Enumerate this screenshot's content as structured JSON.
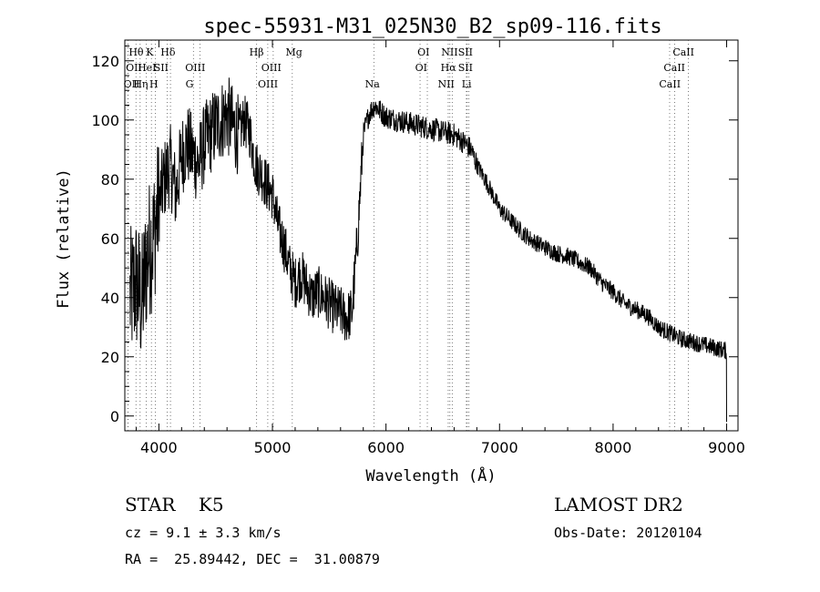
{
  "chart_data": {
    "type": "line",
    "title": "spec-55931-M31_025N30_B2_sp09-116.fits",
    "xlabel": "Wavelength (Å)",
    "ylabel": "Flux (relative)",
    "xlim": [
      3700,
      9100
    ],
    "ylim": [
      -5,
      127
    ],
    "xticks": [
      4000,
      5000,
      6000,
      7000,
      8000,
      9000
    ],
    "yticks": [
      0,
      20,
      40,
      60,
      80,
      100,
      120
    ],
    "grid": false,
    "series": [
      {
        "x": [
          3750,
          3800,
          3850,
          3900,
          3950,
          4000,
          4050,
          4100,
          4150,
          4200,
          4250,
          4300,
          4350,
          4400,
          4450,
          4500,
          4550,
          4600,
          4650,
          4700,
          4750,
          4800,
          4850,
          4900,
          4950,
          5000,
          5050,
          5100,
          5150,
          5200,
          5250,
          5300,
          5350,
          5400,
          5450,
          5500,
          5550,
          5600,
          5650,
          5700,
          5750,
          5800,
          5850,
          5900,
          5950,
          6000,
          6100,
          6200,
          6300,
          6400,
          6500,
          6600,
          6700,
          6750,
          6800,
          6900,
          7000,
          7100,
          7200,
          7300,
          7400,
          7500,
          7600,
          7700,
          7800,
          7900,
          8000,
          8100,
          8200,
          8300,
          8400,
          8500,
          8600,
          8700,
          8800,
          8900,
          9000
        ],
        "values": [
          40,
          45,
          38,
          55,
          60,
          72,
          80,
          85,
          75,
          88,
          92,
          88,
          85,
          92,
          95,
          98,
          100,
          102,
          98,
          95,
          100,
          96,
          85,
          82,
          78,
          75,
          64,
          58,
          50,
          45,
          48,
          44,
          40,
          42,
          40,
          38,
          36,
          35,
          33,
          35,
          60,
          95,
          102,
          105,
          103,
          101,
          100,
          99,
          98,
          97,
          96,
          95,
          92,
          90,
          85,
          78,
          70,
          66,
          62,
          59,
          57,
          55,
          54,
          52,
          50,
          45,
          42,
          38,
          36,
          34,
          30,
          28,
          26,
          25,
          24,
          23,
          22
        ]
      }
    ],
    "spectral_lines": [
      {
        "label": "Hθ",
        "x": 3798,
        "row": 1,
        "lab_x": 3800
      },
      {
        "label": "K",
        "x": 3934,
        "row": 1,
        "lab_x": 3920
      },
      {
        "label": "Hδ",
        "x": 4102,
        "row": 1,
        "lab_x": 4080
      },
      {
        "label": "OII",
        "x": 3727,
        "row": 2,
        "lab_x": 3780
      },
      {
        "label": "HeI",
        "x": 3889,
        "row": 2,
        "lab_x": 3895
      },
      {
        "label": "SII",
        "x": 4072,
        "row": 2,
        "lab_x": 4020
      },
      {
        "label": "OIII",
        "x": 4363,
        "row": 2,
        "lab_x": 4320
      },
      {
        "label": "OII",
        "x": 3727,
        "row": 3,
        "lab_x": 3760
      },
      {
        "label": "Hη",
        "x": 3835,
        "row": 3,
        "lab_x": 3840
      },
      {
        "label": "H",
        "x": 3968,
        "row": 3,
        "lab_x": 3955
      },
      {
        "label": "G",
        "x": 4304,
        "row": 3,
        "lab_x": 4270
      },
      {
        "label": "Hβ",
        "x": 4861,
        "row": 1,
        "lab_x": 4860
      },
      {
        "label": "OIII",
        "x": 4959,
        "row": 2,
        "lab_x": 4990
      },
      {
        "label": "OIII",
        "x": 5007,
        "row": 3,
        "lab_x": 4960
      },
      {
        "label": "Mg",
        "x": 5175,
        "row": 1,
        "lab_x": 5190
      },
      {
        "label": "Na",
        "x": 5893,
        "row": 3,
        "lab_x": 5880
      },
      {
        "label": "OI",
        "x": 6300,
        "row": 1,
        "lab_x": 6330
      },
      {
        "label": "OI",
        "x": 6364,
        "row": 2,
        "lab_x": 6310
      },
      {
        "label": "NII",
        "x": 6548,
        "row": 3,
        "lab_x": 6530
      },
      {
        "label": "NII",
        "x": 6583,
        "row": 1,
        "lab_x": 6560
      },
      {
        "label": "SII",
        "x": 6716,
        "row": 1,
        "lab_x": 6700
      },
      {
        "label": "Hα",
        "x": 6563,
        "row": 2,
        "lab_x": 6550
      },
      {
        "label": "SII",
        "x": 6731,
        "row": 2,
        "lab_x": 6700
      },
      {
        "label": "Li",
        "x": 6708,
        "row": 3,
        "lab_x": 6710
      },
      {
        "label": "CaII",
        "x": 8498,
        "row": 3,
        "lab_x": 8500
      },
      {
        "label": "CaII",
        "x": 8542,
        "row": 2,
        "lab_x": 8540
      },
      {
        "label": "CaII",
        "x": 8662,
        "row": 1,
        "lab_x": 8620
      }
    ]
  },
  "info": {
    "class": "STAR    K5",
    "survey": "LAMOST DR2",
    "cz": "cz = 9.1 ± 3.3 km/s",
    "obs_date": "Obs-Date: 20120104",
    "coords": "RA =  25.89442, DEC =  31.00879"
  }
}
